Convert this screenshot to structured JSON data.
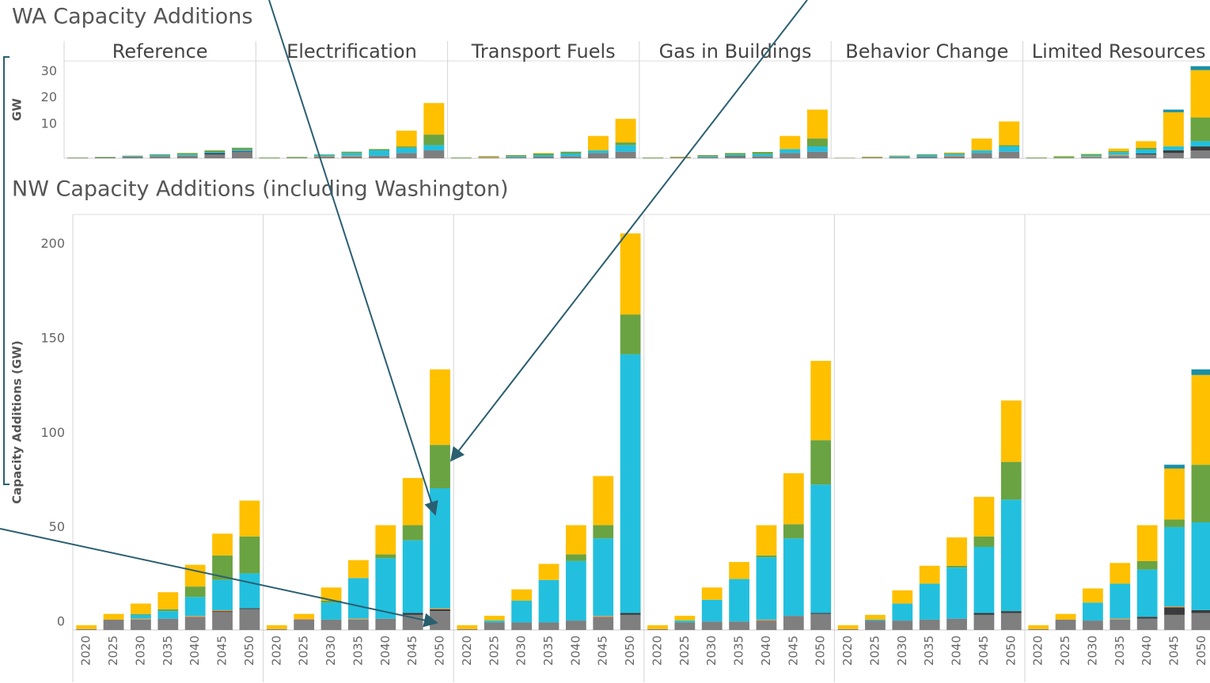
{
  "chart_data": [
    {
      "type": "bar",
      "stacked": true,
      "title": "WA Capacity Additions",
      "ylabel": "GW",
      "facets": [
        "Reference",
        "Electrification",
        "Transport Fuels",
        "Gas in Buildings",
        "Behavior Change",
        "Limited Resources"
      ],
      "ylim": [
        0,
        37
      ],
      "yticks": [
        10,
        20,
        30
      ],
      "series": [
        {
          "color": "#7f7f7f",
          "values": [
            [
              0.2,
              0.3,
              0.6,
              0.8,
              1,
              1.5,
              2.5
            ],
            [
              0.1,
              0.2,
              0.6,
              0.8,
              1,
              2,
              3
            ],
            [
              0.1,
              0.2,
              0.4,
              0.6,
              0.8,
              2,
              2.5
            ],
            [
              0.1,
              0.2,
              0.4,
              0.6,
              0.8,
              2,
              2.5
            ],
            [
              0.1,
              0.2,
              0.4,
              0.6,
              0.8,
              2,
              2.5
            ],
            [
              0.1,
              0.2,
              0.5,
              1,
              1.5,
              2,
              3
            ]
          ]
        },
        {
          "color": "#3b3b3b",
          "values": [
            [
              0,
              0,
              0,
              0,
              0,
              0.5,
              0.3
            ],
            [
              0,
              0,
              0,
              0,
              0,
              0,
              0
            ],
            [
              0,
              0,
              0,
              0,
              0,
              0,
              0
            ],
            [
              0,
              0,
              0,
              0.2,
              0,
              0,
              0
            ],
            [
              0,
              0,
              0,
              0,
              0,
              0,
              0
            ],
            [
              0,
              0,
              0,
              0,
              0.3,
              1,
              1.5
            ]
          ]
        },
        {
          "color": "#e8953a",
          "values": [
            [
              0,
              0,
              0,
              0,
              0,
              0,
              0
            ],
            [
              0,
              0,
              0.2,
              0.2,
              0,
              0,
              0
            ],
            [
              0,
              0.3,
              0,
              0,
              0,
              0,
              0
            ],
            [
              0,
              0.2,
              0,
              0,
              0,
              0,
              0
            ],
            [
              0,
              0.2,
              0,
              0,
              0.2,
              0,
              0
            ],
            [
              0,
              0,
              0.2,
              0.3,
              0,
              0,
              0
            ]
          ]
        },
        {
          "color": "#22c0de",
          "values": [
            [
              0,
              0,
              0.2,
              0.4,
              0.4,
              0.4,
              0.5
            ],
            [
              0,
              0,
              0.5,
              1,
              2,
              2,
              2
            ],
            [
              0,
              0,
              0.3,
              0.6,
              1,
              1,
              2.5
            ],
            [
              0,
              0,
              0.3,
              0.5,
              0.8,
              1.5,
              2
            ],
            [
              0,
              0,
              0.3,
              0.6,
              0.6,
              1,
              2
            ],
            [
              0,
              0.2,
              0.5,
              1,
              1.5,
              1.5,
              2
            ]
          ]
        },
        {
          "color": "#6aa342",
          "values": [
            [
              0.1,
              0.2,
              0.2,
              0.3,
              0.6,
              0.6,
              0.7
            ],
            [
              0.2,
              0.3,
              0.2,
              0.5,
              0.5,
              0.5,
              4
            ],
            [
              0.2,
              0.3,
              0.5,
              0.6,
              0.7,
              0,
              1
            ],
            [
              0.2,
              0.2,
              0.5,
              0.7,
              0.8,
              0,
              3
            ],
            [
              0.1,
              0.2,
              0.3,
              0.3,
              0.4,
              0,
              0.5
            ],
            [
              0.2,
              0.3,
              0.3,
              0.4,
              0.7,
              0,
              9
            ]
          ]
        },
        {
          "color": "#ffc000",
          "values": [
            [
              0,
              0,
              0,
              0,
              0,
              0,
              0
            ],
            [
              0,
              0,
              0,
              0,
              0,
              6,
              12
            ],
            [
              0,
              0,
              0,
              0.2,
              0,
              5.5,
              9
            ],
            [
              0,
              0,
              0,
              0,
              0,
              5,
              11
            ],
            [
              0,
              0,
              0,
              0,
              0.2,
              4.5,
              9
            ],
            [
              0,
              0.2,
              0.2,
              1,
              2.5,
              13,
              18
            ]
          ]
        },
        {
          "color": "#1a8fa6",
          "values": [
            [
              0,
              0,
              0,
              0,
              0,
              0,
              0
            ],
            [
              0,
              0,
              0,
              0,
              0,
              0,
              0
            ],
            [
              0,
              0,
              0,
              0,
              0,
              0,
              0
            ],
            [
              0,
              0,
              0,
              0,
              0,
              0,
              0
            ],
            [
              0,
              0,
              0,
              0,
              0,
              0,
              0
            ],
            [
              0,
              0,
              0,
              0,
              0,
              1,
              1.5
            ]
          ]
        }
      ]
    },
    {
      "type": "bar",
      "stacked": true,
      "title": "NW Capacity Additions (including Washington)",
      "ylabel": "Capacity Additions (GW)",
      "categories": [
        "2020",
        "2025",
        "2030",
        "2035",
        "2040",
        "2045",
        "2050"
      ],
      "ylim": [
        0,
        220
      ],
      "yticks": [
        0,
        50,
        100,
        150,
        200
      ],
      "series": [
        {
          "color": "#7f7f7f",
          "values": [
            [
              0.5,
              5.5,
              5.5,
              6,
              7,
              9.5,
              11
            ],
            [
              0.5,
              5.5,
              5.5,
              5.5,
              6,
              8,
              10
            ],
            [
              0.5,
              4,
              4,
              4,
              5,
              7,
              8
            ],
            [
              0.5,
              4,
              4.5,
              4.5,
              5,
              7.5,
              8.5
            ],
            [
              0.5,
              5,
              5,
              5.5,
              6,
              8,
              9
            ],
            [
              0.5,
              5.5,
              5,
              5.5,
              6,
              8,
              9
            ]
          ]
        },
        {
          "color": "#3b3b3b",
          "values": [
            [
              0,
              0,
              0,
              0,
              0,
              0.5,
              0.5
            ],
            [
              0,
              0,
              0,
              0,
              0,
              1,
              1
            ],
            [
              0,
              0,
              0,
              0,
              0,
              0,
              1
            ],
            [
              0,
              0,
              0,
              0,
              0,
              0,
              0.5
            ],
            [
              0,
              0,
              0,
              0,
              0,
              1,
              1
            ],
            [
              0,
              0,
              0,
              0,
              1,
              4,
              1.5
            ]
          ]
        },
        {
          "color": "#e8953a",
          "values": [
            [
              0,
              0,
              0.5,
              0,
              0.5,
              0.5,
              0
            ],
            [
              0,
              0.5,
              0,
              0.5,
              0,
              0,
              0.5
            ],
            [
              0,
              0,
              0,
              0,
              0,
              0.5,
              0
            ],
            [
              0,
              0,
              0,
              0,
              0.5,
              0,
              0
            ],
            [
              0,
              0,
              0,
              0,
              0,
              0,
              0
            ],
            [
              0,
              0,
              0,
              0.5,
              0,
              0.5,
              0
            ]
          ]
        },
        {
          "color": "#22c0de",
          "values": [
            [
              0,
              0,
              2,
              4,
              10,
              16,
              18.5
            ],
            [
              0,
              0,
              9,
              21.5,
              32,
              38.5,
              63.5
            ],
            [
              0,
              1,
              11.5,
              22.5,
              31.5,
              41,
              137
            ],
            [
              0,
              1,
              11.5,
              22.5,
              33,
              41,
              68
            ],
            [
              0,
              0.5,
              9,
              19,
              27,
              35,
              59
            ],
            [
              0,
              0,
              9.5,
              18.5,
              25,
              42,
              46.5
            ]
          ]
        },
        {
          "color": "#6aa342",
          "values": [
            [
              0,
              0,
              0.5,
              1,
              5.5,
              13,
              19.5
            ],
            [
              0,
              0,
              1,
              0,
              2,
              8,
              23
            ],
            [
              0,
              0,
              0,
              0,
              3.5,
              7,
              21
            ],
            [
              0,
              0,
              0,
              0,
              1,
              7.5,
              23.5
            ],
            [
              0,
              0,
              0,
              0,
              1,
              5.5,
              20
            ],
            [
              0,
              0,
              0,
              0,
              4.5,
              4,
              30.5
            ]
          ]
        },
        {
          "color": "#ffc000",
          "values": [
            [
              2,
              3,
              5.5,
              9,
              11.5,
              11.5,
              19
            ],
            [
              2,
              2.5,
              7,
              9.5,
              15.5,
              25,
              40
            ],
            [
              2,
              2.5,
              6,
              8.5,
              15.5,
              26,
              43
            ],
            [
              2,
              2.5,
              6.5,
              9,
              16,
              27,
              42
            ],
            [
              2,
              2.5,
              7,
              9.5,
              15,
              21,
              32.5
            ],
            [
              2,
              3,
              7.5,
              11,
              19,
              27,
              47.5
            ]
          ]
        },
        {
          "color": "#1a8fa6",
          "values": [
            [
              0,
              0,
              0,
              0,
              0,
              0,
              0
            ],
            [
              0,
              0,
              0,
              0,
              0,
              0,
              0
            ],
            [
              0,
              0,
              0,
              0,
              0,
              0,
              0
            ],
            [
              0,
              0,
              0,
              0,
              0,
              0,
              0
            ],
            [
              0,
              0,
              0,
              0,
              0,
              0,
              0
            ],
            [
              0,
              0,
              0,
              0,
              0,
              2,
              3
            ]
          ]
        }
      ]
    }
  ]
}
